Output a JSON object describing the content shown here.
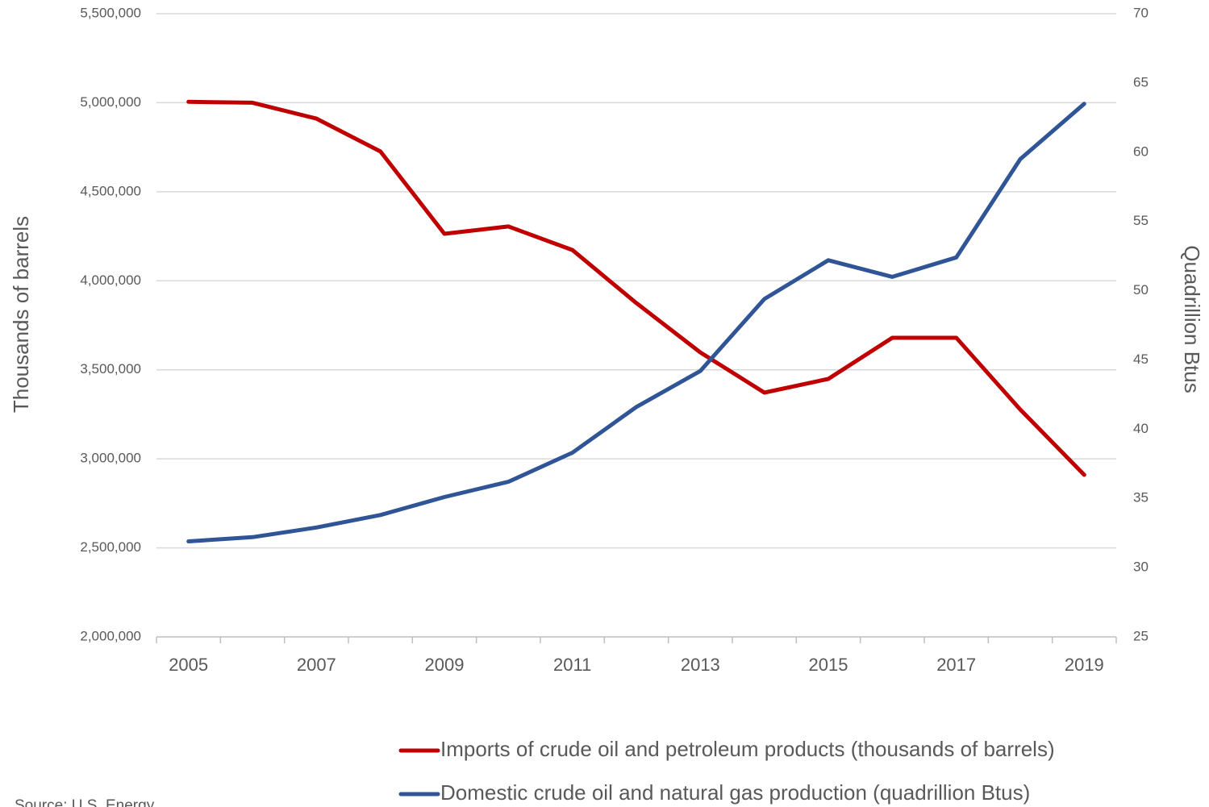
{
  "chart_data": {
    "type": "line",
    "categories": [
      "2005",
      null,
      "2007",
      null,
      "2009",
      null,
      "2011",
      null,
      "2013",
      null,
      "2015",
      null,
      "2017",
      null,
      "2019"
    ],
    "series": [
      {
        "name": "Imports of crude oil and petroleum products (thousands of barrels)",
        "color": "#c00000",
        "values": [
          5005000,
          5000000,
          4911000,
          4726000,
          4264000,
          4305000,
          4173000,
          3875000,
          3598000,
          3372000,
          3449000,
          3680000,
          3680000,
          3277000,
          2910000
        ]
      },
      {
        "name": "Domestic crude oil and natural gas production (quadrillion Btus)",
        "color": "#2f5597",
        "axis": "y2",
        "values": [
          31.9,
          32.2,
          32.9,
          33.8,
          35.1,
          36.2,
          38.3,
          41.6,
          44.2,
          49.4,
          52.2,
          51.0,
          52.4,
          59.5,
          63.5
        ]
      }
    ],
    "ylabel": "Thousands of barrels",
    "y2label": "Quadrillion Btus",
    "ylim": [
      2000000,
      5500000
    ],
    "yticks": [
      {
        "value": 2000000,
        "label": "2,000,000"
      },
      {
        "value": 2500000,
        "label": "2,500,000"
      },
      {
        "value": 3000000,
        "label": "3,000,000"
      },
      {
        "value": 3500000,
        "label": "3,500,000"
      },
      {
        "value": 4000000,
        "label": "4,000,000"
      },
      {
        "value": 4500000,
        "label": "4,500,000"
      },
      {
        "value": 5000000,
        "label": "5,000,000"
      },
      {
        "value": 5500000,
        "label": "5,500,000"
      }
    ],
    "y2lim": [
      25,
      70
    ],
    "y2ticks": [
      25,
      30,
      35,
      40,
      45,
      50,
      55,
      60,
      65,
      70
    ],
    "grid": true,
    "legend": "bottom",
    "source": "Source: U.S. Energy"
  }
}
